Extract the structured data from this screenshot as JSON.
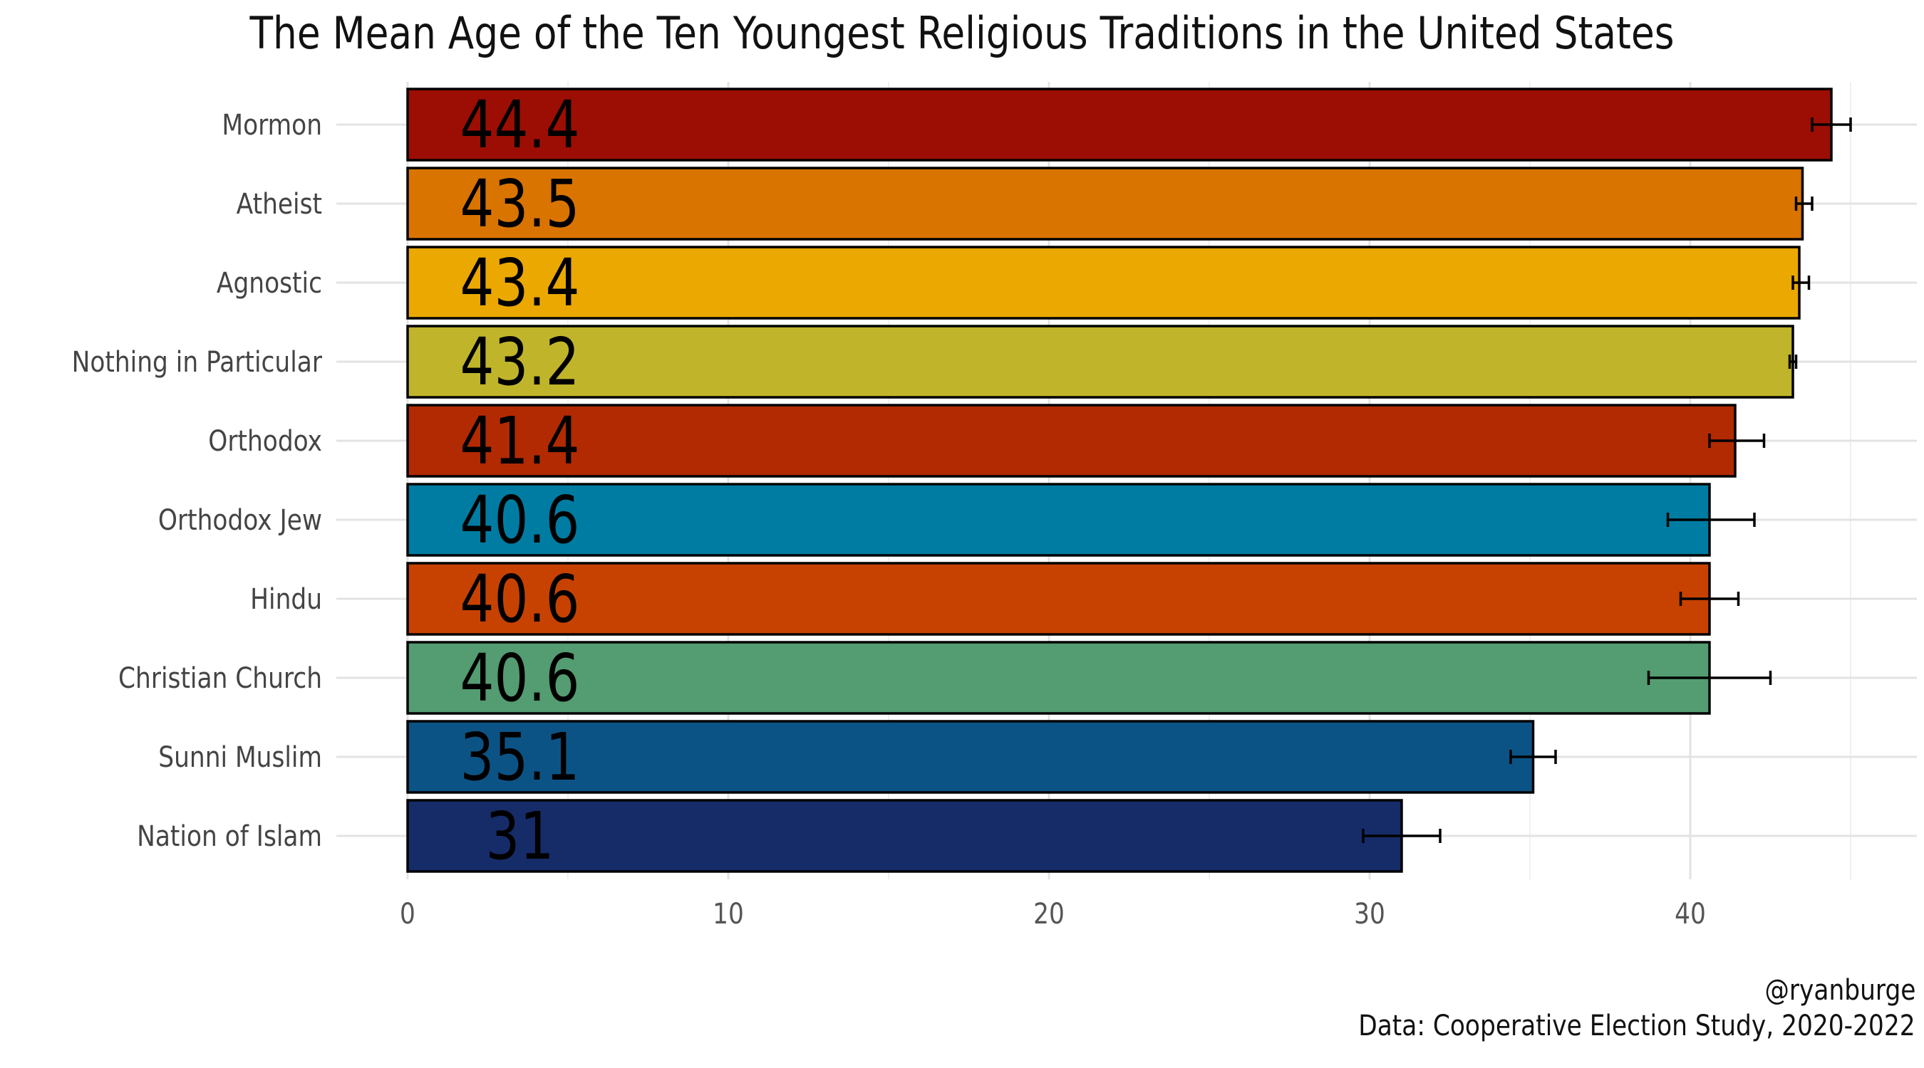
{
  "chart_data": {
    "type": "bar",
    "orientation": "horizontal",
    "title": "The Mean Age of the Ten Youngest Religious Traditions in the United States",
    "xlabel": "",
    "ylabel": "",
    "xlim": [
      0,
      45
    ],
    "x_ticks": [
      0,
      10,
      20,
      30,
      40
    ],
    "grid": true,
    "categories": [
      "Mormon",
      "Atheist",
      "Agnostic",
      "Nothing in Particular",
      "Orthodox",
      "Orthodox Jew",
      "Hindu",
      "Christian Church",
      "Sunni Muslim",
      "Nation of Islam"
    ],
    "values": [
      44.4,
      43.5,
      43.4,
      43.2,
      41.4,
      40.6,
      40.6,
      40.6,
      35.1,
      31.0
    ],
    "value_labels": [
      "44.4",
      "43.5",
      "43.4",
      "43.2",
      "41.4",
      "40.6",
      "40.6",
      "40.6",
      "35.1",
      "31"
    ],
    "error_low": [
      43.8,
      43.3,
      43.2,
      43.1,
      40.6,
      39.3,
      39.7,
      38.7,
      34.4,
      29.8
    ],
    "error_high": [
      45.0,
      43.8,
      43.7,
      43.3,
      42.3,
      42.0,
      41.5,
      42.5,
      35.8,
      32.2
    ],
    "colors": [
      "#9C0D03",
      "#D97400",
      "#EAA800",
      "#C0B52A",
      "#B12A02",
      "#007CA2",
      "#C74200",
      "#549C71",
      "#0C5385",
      "#162C68"
    ]
  },
  "caption": {
    "handle": "@ryanburge",
    "source": "Data: Cooperative Election Study, 2020-2022"
  }
}
